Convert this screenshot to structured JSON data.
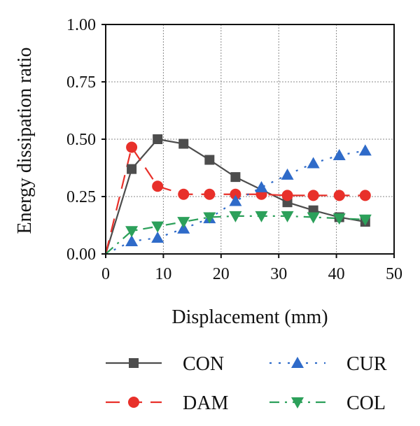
{
  "chart_data": {
    "type": "line",
    "title": "",
    "xlabel": "Displacement (mm)",
    "ylabel": "Energy dissipation ratio",
    "xlim": [
      0,
      50
    ],
    "ylim": [
      0,
      1.0
    ],
    "xticks": [
      0,
      10,
      20,
      30,
      40,
      50
    ],
    "yticks": [
      0.0,
      0.25,
      0.5,
      0.75,
      1.0
    ],
    "xtick_labels": [
      "0",
      "10",
      "20",
      "30",
      "40",
      "50"
    ],
    "ytick_labels": [
      "0.00",
      "0.25",
      "0.50",
      "0.75",
      "1.00"
    ],
    "grid": true,
    "legend_position": "bottom",
    "series": [
      {
        "name": "CON",
        "color": "#4d4d4d",
        "line": "solid",
        "marker": "square",
        "x": [
          0,
          4.5,
          9,
          13.5,
          18,
          22.5,
          31.5,
          36,
          40.5,
          45
        ],
        "y": [
          0.0,
          0.37,
          0.5,
          0.48,
          0.41,
          0.335,
          0.225,
          0.19,
          0.16,
          0.14
        ]
      },
      {
        "name": "DAM",
        "color": "#e8302a",
        "line": "dashed",
        "marker": "circle",
        "x": [
          0,
          4.5,
          9,
          13.5,
          18,
          22.5,
          27,
          31.5,
          36,
          40.5,
          45
        ],
        "y": [
          0.0,
          0.465,
          0.295,
          0.26,
          0.26,
          0.26,
          0.26,
          0.255,
          0.255,
          0.255,
          0.255
        ]
      },
      {
        "name": "CUR",
        "color": "#2f6bc9",
        "line": "dotted",
        "marker": "triangle-up",
        "x": [
          0,
          4.5,
          9,
          13.5,
          18,
          22.5,
          27,
          31.5,
          36,
          40.5,
          45
        ],
        "y": [
          0.0,
          0.055,
          0.07,
          0.11,
          0.155,
          0.23,
          0.29,
          0.345,
          0.395,
          0.43,
          0.45
        ]
      },
      {
        "name": "COL",
        "color": "#2ca05a",
        "line": "dashdot",
        "marker": "triangle-down",
        "x": [
          0,
          4.5,
          9,
          13.5,
          18,
          22.5,
          27,
          31.5,
          36,
          40.5,
          45
        ],
        "y": [
          0.0,
          0.1,
          0.12,
          0.14,
          0.16,
          0.165,
          0.165,
          0.165,
          0.16,
          0.155,
          0.15
        ]
      }
    ],
    "legend_order": [
      "CON",
      "CUR",
      "DAM",
      "COL"
    ]
  }
}
